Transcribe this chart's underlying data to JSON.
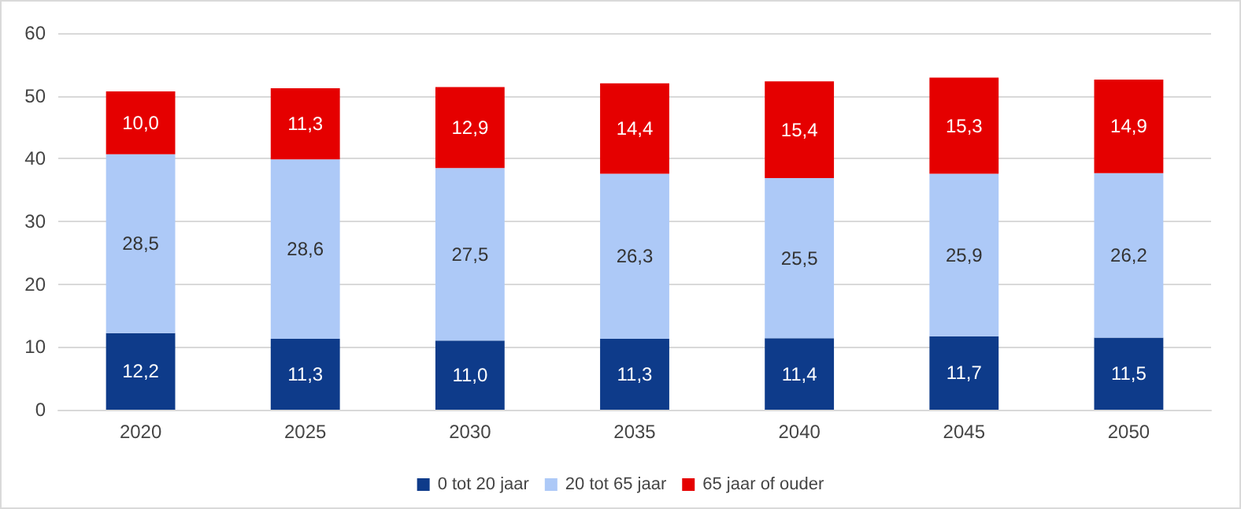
{
  "chart_data": {
    "type": "bar",
    "stacked": true,
    "categories": [
      "2020",
      "2025",
      "2030",
      "2035",
      "2040",
      "2045",
      "2050"
    ],
    "series": [
      {
        "name": "0 tot 20 jaar",
        "color": "#0e3b8a",
        "values": [
          12.2,
          11.3,
          11.0,
          11.3,
          11.4,
          11.7,
          11.5
        ],
        "value_labels": [
          "12,2",
          "11,3",
          "11,0",
          "11,3",
          "11,4",
          "11,7",
          "11,5"
        ]
      },
      {
        "name": "20 tot 65 jaar",
        "color": "#adc9f7",
        "values": [
          28.5,
          28.6,
          27.5,
          26.3,
          25.5,
          25.9,
          26.2
        ],
        "value_labels": [
          "28,5",
          "28,6",
          "27,5",
          "26,3",
          "25,5",
          "25,9",
          "26,2"
        ]
      },
      {
        "name": "65 jaar of ouder",
        "color": "#e50000",
        "values": [
          10.0,
          11.3,
          12.9,
          14.4,
          15.4,
          15.3,
          14.9
        ],
        "value_labels": [
          "10,0",
          "11,3",
          "12,9",
          "14,4",
          "15,4",
          "15,3",
          "14,9"
        ]
      }
    ],
    "ylim": [
      0,
      60
    ],
    "yticks": [
      0,
      10,
      20,
      30,
      40,
      50,
      60
    ],
    "grid": "y",
    "legend": "bottom"
  }
}
